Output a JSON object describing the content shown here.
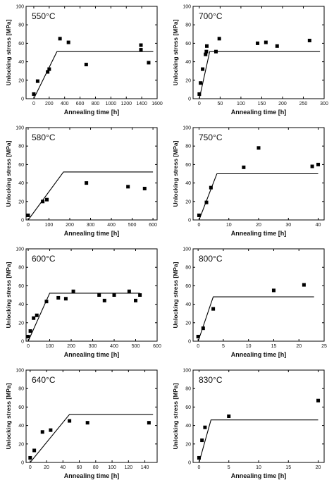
{
  "chart_data": [
    {
      "type": "scatter",
      "title": "550°C",
      "xlabel": "Annealing time [h]",
      "ylabel": "Unlocking stress [MPa]",
      "xlim": [
        -100,
        1600
      ],
      "ylim": [
        0,
        100
      ],
      "xticks": [
        0,
        200,
        400,
        600,
        800,
        1000,
        1200,
        1400,
        1600
      ],
      "yticks": [
        0,
        20,
        40,
        60,
        80,
        100
      ],
      "points": [
        [
          0,
          5
        ],
        [
          50,
          19
        ],
        [
          180,
          29
        ],
        [
          200,
          32
        ],
        [
          340,
          65
        ],
        [
          450,
          61
        ],
        [
          680,
          37
        ],
        [
          1390,
          58
        ],
        [
          1390,
          53
        ],
        [
          1490,
          39
        ]
      ],
      "fit": [
        [
          0,
          0
        ],
        [
          300,
          51
        ],
        [
          1550,
          51
        ]
      ]
    },
    {
      "type": "scatter",
      "title": "700°C",
      "xlabel": "Annealing time [h]",
      "ylabel": "Unlocking stress [MPa]",
      "xlim": [
        -15,
        300
      ],
      "ylim": [
        0,
        100
      ],
      "xticks": [
        0,
        50,
        100,
        150,
        200,
        250,
        300
      ],
      "yticks": [
        0,
        20,
        40,
        60,
        80,
        100
      ],
      "points": [
        [
          0,
          5
        ],
        [
          3,
          17
        ],
        [
          8,
          32
        ],
        [
          15,
          48
        ],
        [
          17,
          51
        ],
        [
          18,
          57
        ],
        [
          40,
          51
        ],
        [
          48,
          65
        ],
        [
          140,
          60
        ],
        [
          160,
          61
        ],
        [
          187,
          57
        ],
        [
          265,
          63
        ]
      ],
      "fit": [
        [
          0,
          0
        ],
        [
          25,
          51
        ],
        [
          290,
          51
        ]
      ]
    },
    {
      "type": "scatter",
      "title": "580°C",
      "xlabel": "Annealing time [h]",
      "ylabel": "Unlocking stress [MPa]",
      "xlim": [
        -10,
        620
      ],
      "ylim": [
        0,
        100
      ],
      "xticks": [
        0,
        100,
        200,
        300,
        400,
        500,
        600
      ],
      "yticks": [
        0,
        20,
        40,
        60,
        80,
        100
      ],
      "points": [
        [
          0,
          5
        ],
        [
          70,
          20
        ],
        [
          90,
          22
        ],
        [
          280,
          40
        ],
        [
          480,
          36
        ],
        [
          560,
          34
        ]
      ],
      "fit": [
        [
          0,
          0
        ],
        [
          170,
          52
        ],
        [
          600,
          52
        ]
      ]
    },
    {
      "type": "scatter",
      "title": "750°C",
      "xlabel": "Annealing time [h]",
      "ylabel": "Unlocking stress [MPa]",
      "xlim": [
        -2,
        42
      ],
      "ylim": [
        0,
        100
      ],
      "xticks": [
        0,
        10,
        20,
        30,
        40
      ],
      "yticks": [
        0,
        20,
        40,
        60,
        80,
        100
      ],
      "points": [
        [
          0,
          5
        ],
        [
          2.5,
          19
        ],
        [
          4,
          35
        ],
        [
          15,
          57
        ],
        [
          20,
          78
        ],
        [
          38,
          58
        ],
        [
          40,
          60
        ]
      ],
      "fit": [
        [
          0,
          0
        ],
        [
          6,
          50
        ],
        [
          40,
          50
        ]
      ]
    },
    {
      "type": "scatter",
      "title": "600°C",
      "xlabel": "Annealing time [h]",
      "ylabel": "Unlocking stress [MPa]",
      "xlim": [
        -10,
        600
      ],
      "ylim": [
        0,
        100
      ],
      "xticks": [
        0,
        100,
        200,
        300,
        400,
        500,
        600
      ],
      "yticks": [
        0,
        20,
        40,
        60,
        80,
        100
      ],
      "points": [
        [
          0,
          5
        ],
        [
          10,
          11
        ],
        [
          25,
          25
        ],
        [
          40,
          28
        ],
        [
          85,
          43
        ],
        [
          140,
          47
        ],
        [
          175,
          46
        ],
        [
          210,
          54
        ],
        [
          330,
          50
        ],
        [
          355,
          44
        ],
        [
          400,
          50
        ],
        [
          470,
          54
        ],
        [
          500,
          44
        ],
        [
          520,
          50
        ]
      ],
      "fit": [
        [
          0,
          0
        ],
        [
          100,
          52
        ],
        [
          520,
          52
        ]
      ]
    },
    {
      "type": "scatter",
      "title": "800°C",
      "xlabel": "Annealing time [h]",
      "ylabel": "Unlocking stress [MPa]",
      "xlim": [
        -1,
        25
      ],
      "ylim": [
        0,
        100
      ],
      "xticks": [
        0,
        5,
        10,
        15,
        20,
        25
      ],
      "yticks": [
        0,
        20,
        40,
        60,
        80,
        100
      ],
      "points": [
        [
          0,
          5
        ],
        [
          1,
          14
        ],
        [
          3,
          35
        ],
        [
          15,
          55
        ],
        [
          21,
          61
        ]
      ],
      "fit": [
        [
          0,
          0
        ],
        [
          3,
          48
        ],
        [
          23,
          48
        ]
      ]
    },
    {
      "type": "scatter",
      "title": "640°C",
      "xlabel": "Annealing time [h]",
      "ylabel": "Unlocking stress [MPa]",
      "xlim": [
        -5,
        155
      ],
      "ylim": [
        0,
        100
      ],
      "xticks": [
        0,
        20,
        40,
        60,
        80,
        100,
        120,
        140
      ],
      "yticks": [
        0,
        20,
        40,
        60,
        80,
        100
      ],
      "points": [
        [
          0,
          5
        ],
        [
          5,
          13
        ],
        [
          15,
          33
        ],
        [
          25,
          35
        ],
        [
          48,
          45
        ],
        [
          70,
          43
        ],
        [
          145,
          43
        ]
      ],
      "fit": [
        [
          0,
          0
        ],
        [
          48,
          52
        ],
        [
          150,
          52
        ]
      ]
    },
    {
      "type": "scatter",
      "title": "830°C",
      "xlabel": "Annealing time [h]",
      "ylabel": "Unlocking stress [MPa]",
      "xlim": [
        -1,
        21
      ],
      "ylim": [
        0,
        100
      ],
      "xticks": [
        0,
        5,
        10,
        15,
        20
      ],
      "yticks": [
        0,
        20,
        40,
        60,
        80,
        100
      ],
      "points": [
        [
          0,
          5
        ],
        [
          0.5,
          24
        ],
        [
          1,
          38
        ],
        [
          5,
          50
        ],
        [
          20,
          67
        ]
      ],
      "fit": [
        [
          0,
          0
        ],
        [
          2,
          46
        ],
        [
          20,
          46
        ]
      ]
    }
  ]
}
